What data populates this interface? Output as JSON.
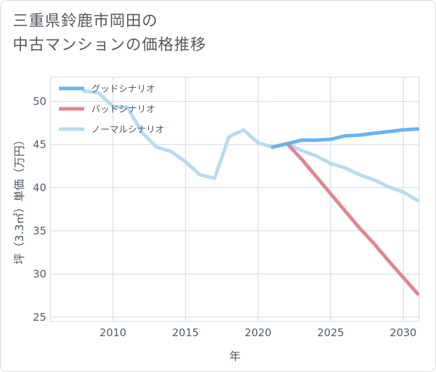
{
  "title": {
    "line1": "三重県鈴鹿市岡田の",
    "line2": "中古マンションの価格推移"
  },
  "colors": {
    "good": "#6ab4ee",
    "bad": "#e0868f",
    "normal": "#b7dcee",
    "grid": "#cfd8e2",
    "text": "#4d5a6a"
  },
  "chart_data": {
    "type": "line",
    "title": "三重県鈴鹿市岡田の中古マンションの価格推移",
    "xlabel": "年",
    "ylabel": "坪（3.3㎡）単価（万円）",
    "xlim": [
      2005.7,
      2031.1
    ],
    "ylim": [
      24.5,
      52.8
    ],
    "xticks": [
      2010,
      2015,
      2020,
      2025,
      2030
    ],
    "yticks": [
      25,
      30,
      35,
      40,
      45,
      50
    ],
    "grid": true,
    "legend_position": "top-left",
    "series": [
      {
        "name": "グッドシナリオ",
        "key": "good",
        "x": [
          2021,
          2022,
          2023,
          2024,
          2025,
          2026,
          2027,
          2028,
          2029,
          2030,
          2031
        ],
        "values": [
          44.7,
          45.1,
          45.5,
          45.5,
          45.6,
          46.0,
          46.1,
          46.3,
          46.5,
          46.7,
          46.8
        ]
      },
      {
        "name": "バッドシナリオ",
        "key": "bad",
        "x": [
          2021,
          2022,
          2023,
          2024,
          2025,
          2026,
          2027,
          2028,
          2029,
          2030,
          2031
        ],
        "values": [
          44.7,
          45.1,
          43.3,
          41.3,
          39.3,
          37.3,
          35.3,
          33.5,
          31.5,
          29.6,
          27.7
        ]
      },
      {
        "name": "ノーマルシナリオ",
        "key": "normal",
        "x": [
          2008,
          2009,
          2010,
          2011,
          2012,
          2013,
          2014,
          2015,
          2016,
          2017,
          2018,
          2019,
          2020,
          2021,
          2022,
          2023,
          2024,
          2025,
          2026,
          2027,
          2028,
          2029,
          2030,
          2031
        ],
        "values": [
          51.2,
          51.0,
          49.4,
          49.3,
          46.4,
          44.7,
          44.2,
          43.0,
          41.5,
          41.1,
          45.9,
          46.7,
          45.2,
          44.7,
          45.1,
          44.3,
          43.7,
          42.8,
          42.3,
          41.5,
          40.9,
          40.1,
          39.5,
          38.5
        ]
      }
    ]
  }
}
